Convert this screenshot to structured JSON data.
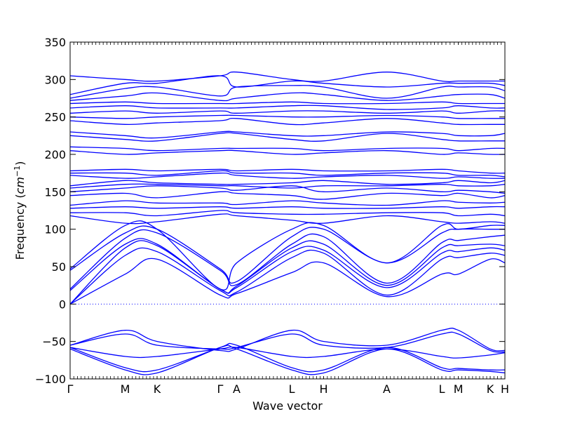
{
  "chart_data": {
    "type": "line",
    "xlabel": "Wave vector",
    "ylabel": "Frequency ($cm^{-1}$)",
    "ylabel_parts": {
      "text": "Frequency (",
      "var": "cm",
      "sup": "−1",
      "close": ")"
    },
    "ylim": [
      -100,
      350
    ],
    "yticks": [
      -100,
      -50,
      0,
      50,
      100,
      150,
      200,
      250,
      300,
      350
    ],
    "ytick_labels": [
      "−100",
      "−50",
      "0",
      "50",
      "100",
      "150",
      "200",
      "250",
      "300",
      "350"
    ],
    "xlim": [
      0,
      7.1
    ],
    "kpoints": [
      {
        "label": "Γ",
        "x": 0
      },
      {
        "label": "M",
        "x": 0.9
      },
      {
        "label": "K",
        "x": 1.42
      },
      {
        "label": "Γ",
        "x": 2.45
      },
      {
        "label": "A",
        "x": 2.72
      },
      {
        "label": "L",
        "x": 3.62
      },
      {
        "label": "H",
        "x": 4.14
      },
      {
        "label": "A",
        "x": 5.17
      },
      {
        "label": "L",
        "x": 6.07
      },
      {
        "label": "M",
        "x": 6.34
      },
      {
        "label": "K",
        "x": 6.86
      },
      {
        "label": "H",
        "x": 7.1
      }
    ],
    "zero_line": {
      "y": 0,
      "style": "dotted",
      "color": "#0000ff"
    },
    "line_color": "#0000ff",
    "series": [
      {
        "x": [
          0,
          0.9,
          1.42,
          2.45,
          2.72,
          3.62,
          4.14,
          5.17,
          6.07,
          6.34,
          6.86,
          7.1
        ],
        "y": [
          0,
          40,
          60,
          12,
          14,
          42,
          55,
          10,
          40,
          40,
          60,
          55
        ]
      },
      {
        "x": [
          0,
          0.9,
          1.42,
          2.45,
          2.72,
          3.62,
          4.14,
          5.17,
          6.07,
          6.34,
          6.86,
          7.1
        ],
        "y": [
          0,
          65,
          70,
          18,
          16,
          62,
          68,
          12,
          60,
          62,
          68,
          65
        ]
      },
      {
        "x": [
          0,
          0.9,
          1.42,
          2.45,
          2.72,
          3.62,
          4.14,
          5.17,
          6.07,
          6.34,
          6.86,
          7.1
        ],
        "y": [
          0,
          75,
          78,
          20,
          22,
          70,
          72,
          22,
          68,
          70,
          75,
          72
        ]
      },
      {
        "x": [
          0,
          0.9,
          1.42,
          2.45,
          2.72,
          3.62,
          4.14,
          5.17,
          6.07,
          6.34,
          6.86,
          7.1
        ],
        "y": [
          18,
          80,
          80,
          20,
          24,
          75,
          80,
          25,
          75,
          78,
          80,
          78
        ]
      },
      {
        "x": [
          0,
          0.9,
          1.42,
          2.45,
          2.72,
          3.62,
          4.14,
          5.17,
          6.07,
          6.34,
          6.86,
          7.1
        ],
        "y": [
          20,
          88,
          95,
          45,
          26,
          80,
          90,
          28,
          82,
          85,
          90,
          92
        ]
      },
      {
        "x": [
          0,
          0.9,
          1.42,
          2.45,
          2.72,
          3.62,
          4.14,
          5.17,
          6.07,
          6.34,
          6.86,
          7.1
        ],
        "y": [
          45,
          95,
          100,
          47,
          30,
          90,
          100,
          55,
          95,
          100,
          100,
          100
        ]
      },
      {
        "x": [
          0,
          0.9,
          1.42,
          2.45,
          2.72,
          3.62,
          4.14,
          5.17,
          6.07,
          6.34,
          6.86,
          7.1
        ],
        "y": [
          47,
          105,
          100,
          20,
          55,
          100,
          105,
          55,
          105,
          100,
          105,
          105
        ]
      },
      {
        "x": [
          0,
          0.9,
          1.42,
          2.45,
          2.72,
          3.62,
          4.14,
          5.17,
          6.07,
          6.34,
          6.86,
          7.1
        ],
        "y": [
          118,
          108,
          110,
          120,
          118,
          112,
          108,
          118,
          110,
          108,
          110,
          108
        ]
      },
      {
        "x": [
          0,
          0.9,
          1.42,
          2.45,
          2.72,
          3.62,
          4.14,
          5.17,
          6.07,
          6.34,
          6.86,
          7.1
        ],
        "y": [
          122,
          122,
          118,
          125,
          122,
          120,
          120,
          122,
          122,
          118,
          120,
          118
        ]
      },
      {
        "x": [
          0,
          0.9,
          1.42,
          2.45,
          2.72,
          3.62,
          4.14,
          5.17,
          6.07,
          6.34,
          6.86,
          7.1
        ],
        "y": [
          128,
          130,
          128,
          130,
          128,
          130,
          128,
          128,
          130,
          128,
          130,
          130
        ]
      },
      {
        "x": [
          0,
          0.9,
          1.42,
          2.45,
          2.72,
          3.62,
          4.14,
          5.17,
          6.07,
          6.34,
          6.86,
          7.1
        ],
        "y": [
          132,
          138,
          135,
          135,
          133,
          138,
          135,
          132,
          138,
          136,
          135,
          136
        ]
      },
      {
        "x": [
          0,
          0.9,
          1.42,
          2.45,
          2.72,
          3.62,
          4.14,
          5.17,
          6.07,
          6.34,
          6.86,
          7.1
        ],
        "y": [
          145,
          148,
          142,
          150,
          148,
          145,
          140,
          148,
          145,
          148,
          142,
          145
        ]
      },
      {
        "x": [
          0,
          0.9,
          1.42,
          2.45,
          2.72,
          3.62,
          4.14,
          5.17,
          6.07,
          6.34,
          6.86,
          7.1
        ],
        "y": [
          150,
          155,
          158,
          155,
          152,
          158,
          150,
          155,
          150,
          152,
          150,
          148
        ]
      },
      {
        "x": [
          0,
          0.9,
          1.42,
          2.45,
          2.72,
          3.62,
          4.14,
          5.17,
          6.07,
          6.34,
          6.86,
          7.1
        ],
        "y": [
          155,
          160,
          160,
          158,
          158,
          155,
          158,
          158,
          160,
          158,
          158,
          160
        ]
      },
      {
        "x": [
          0,
          0.9,
          1.42,
          2.45,
          2.72,
          3.62,
          4.14,
          5.17,
          6.07,
          6.34,
          6.86,
          7.1
        ],
        "y": [
          158,
          165,
          162,
          160,
          160,
          162,
          165,
          160,
          162,
          165,
          162,
          165
        ]
      },
      {
        "x": [
          0,
          0.9,
          1.42,
          2.45,
          2.72,
          3.62,
          4.14,
          5.17,
          6.07,
          6.34,
          6.86,
          7.1
        ],
        "y": [
          172,
          168,
          170,
          175,
          172,
          168,
          170,
          172,
          168,
          170,
          168,
          168
        ]
      },
      {
        "x": [
          0,
          0.9,
          1.42,
          2.45,
          2.72,
          3.62,
          4.14,
          5.17,
          6.07,
          6.34,
          6.86,
          7.1
        ],
        "y": [
          175,
          175,
          172,
          178,
          175,
          175,
          172,
          175,
          175,
          172,
          172,
          170
        ]
      },
      {
        "x": [
          0,
          0.9,
          1.42,
          2.45,
          2.72,
          3.62,
          4.14,
          5.17,
          6.07,
          6.34,
          6.86,
          7.1
        ],
        "y": [
          178,
          180,
          178,
          180,
          178,
          180,
          178,
          178,
          180,
          178,
          175,
          175
        ]
      },
      {
        "x": [
          0,
          0.9,
          1.42,
          2.45,
          2.72,
          3.62,
          4.14,
          5.17,
          6.07,
          6.34,
          6.86,
          7.1
        ],
        "y": [
          205,
          200,
          202,
          205,
          205,
          200,
          202,
          205,
          200,
          202,
          200,
          200
        ]
      },
      {
        "x": [
          0,
          0.9,
          1.42,
          2.45,
          2.72,
          3.62,
          4.14,
          5.17,
          6.07,
          6.34,
          6.86,
          7.1
        ],
        "y": [
          210,
          208,
          205,
          208,
          208,
          208,
          205,
          208,
          208,
          205,
          208,
          208
        ]
      },
      {
        "x": [
          0,
          0.9,
          1.42,
          2.45,
          2.72,
          3.62,
          4.14,
          5.17,
          6.07,
          6.34,
          6.86,
          7.1
        ],
        "y": [
          225,
          220,
          218,
          228,
          228,
          220,
          218,
          228,
          220,
          218,
          218,
          218
        ]
      },
      {
        "x": [
          0,
          0.9,
          1.42,
          2.45,
          2.72,
          3.62,
          4.14,
          5.17,
          6.07,
          6.34,
          6.86,
          7.1
        ],
        "y": [
          230,
          225,
          222,
          230,
          230,
          225,
          225,
          230,
          228,
          225,
          225,
          228
        ]
      },
      {
        "x": [
          0,
          0.9,
          1.42,
          2.45,
          2.72,
          3.62,
          4.14,
          5.17,
          6.07,
          6.34,
          6.86,
          7.1
        ],
        "y": [
          245,
          240,
          242,
          245,
          248,
          240,
          242,
          248,
          242,
          240,
          240,
          240
        ]
      },
      {
        "x": [
          0,
          0.9,
          1.42,
          2.45,
          2.72,
          3.62,
          4.14,
          5.17,
          6.07,
          6.34,
          6.86,
          7.1
        ],
        "y": [
          250,
          248,
          250,
          252,
          252,
          250,
          250,
          252,
          250,
          248,
          248,
          248
        ]
      },
      {
        "x": [
          0,
          0.9,
          1.42,
          2.45,
          2.72,
          3.62,
          4.14,
          5.17,
          6.07,
          6.34,
          6.86,
          7.1
        ],
        "y": [
          255,
          258,
          255,
          258,
          255,
          258,
          258,
          255,
          258,
          255,
          258,
          258
        ]
      },
      {
        "x": [
          0,
          0.9,
          1.42,
          2.45,
          2.72,
          3.62,
          4.14,
          5.17,
          6.07,
          6.34,
          6.86,
          7.1
        ],
        "y": [
          262,
          265,
          262,
          262,
          262,
          265,
          265,
          260,
          262,
          265,
          262,
          262
        ]
      },
      {
        "x": [
          0,
          0.9,
          1.42,
          2.45,
          2.72,
          3.62,
          4.14,
          5.17,
          6.07,
          6.34,
          6.86,
          7.1
        ],
        "y": [
          268,
          270,
          268,
          268,
          268,
          270,
          268,
          268,
          270,
          268,
          268,
          268
        ]
      },
      {
        "x": [
          0,
          0.9,
          1.42,
          2.45,
          2.72,
          3.62,
          4.14,
          5.17,
          6.07,
          6.34,
          6.86,
          7.1
        ],
        "y": [
          272,
          278,
          282,
          272,
          275,
          282,
          280,
          272,
          278,
          280,
          280,
          275
        ]
      },
      {
        "x": [
          0,
          0.9,
          1.42,
          2.45,
          2.72,
          3.62,
          4.14,
          5.17,
          6.07,
          6.34,
          6.86,
          7.1
        ],
        "y": [
          275,
          288,
          290,
          278,
          290,
          292,
          290,
          275,
          290,
          290,
          290,
          285
        ]
      },
      {
        "x": [
          0,
          0.9,
          1.42,
          2.45,
          2.72,
          3.62,
          4.14,
          5.17,
          6.07,
          6.34,
          6.86,
          7.1
        ],
        "y": [
          280,
          295,
          295,
          305,
          290,
          298,
          295,
          290,
          295,
          295,
          295,
          292
        ]
      },
      {
        "x": [
          0,
          0.9,
          1.42,
          2.45,
          2.72,
          3.62,
          4.14,
          5.17,
          6.07,
          6.34,
          6.86,
          7.1
        ],
        "y": [
          305,
          300,
          298,
          305,
          310,
          300,
          298,
          310,
          298,
          298,
          298,
          298
        ]
      },
      {
        "x": [
          0,
          0.9,
          1.42,
          2.45,
          2.72,
          3.62,
          4.14,
          5.17,
          6.07,
          6.34,
          6.86,
          7.1
        ],
        "y": [
          -55,
          -35,
          -50,
          -62,
          -60,
          -35,
          -50,
          -55,
          -35,
          -35,
          -60,
          -62
        ]
      },
      {
        "x": [
          0,
          0.9,
          1.42,
          2.45,
          2.72,
          3.62,
          4.14,
          5.17,
          6.07,
          6.34,
          6.86,
          7.1
        ],
        "y": [
          -55,
          -40,
          -55,
          -60,
          -58,
          -40,
          -55,
          -58,
          -40,
          -40,
          -62,
          -64
        ]
      },
      {
        "x": [
          0,
          0.9,
          1.42,
          2.45,
          2.72,
          3.62,
          4.14,
          5.17,
          6.07,
          6.34,
          6.86,
          7.1
        ],
        "y": [
          -58,
          -70,
          -70,
          -60,
          -58,
          -70,
          -70,
          -60,
          -70,
          -72,
          -68,
          -65
        ]
      },
      {
        "x": [
          0,
          0.9,
          1.42,
          2.45,
          2.72,
          3.62,
          4.14,
          5.17,
          6.07,
          6.34,
          6.86,
          7.1
        ],
        "y": [
          -58,
          -85,
          -88,
          -58,
          -55,
          -85,
          -88,
          -58,
          -85,
          -86,
          -88,
          -88
        ]
      },
      {
        "x": [
          0,
          0.9,
          1.42,
          2.45,
          2.72,
          3.62,
          4.14,
          5.17,
          6.07,
          6.34,
          6.86,
          7.1
        ],
        "y": [
          -60,
          -88,
          -92,
          -58,
          -60,
          -88,
          -92,
          -60,
          -88,
          -88,
          -90,
          -92
        ]
      }
    ]
  }
}
